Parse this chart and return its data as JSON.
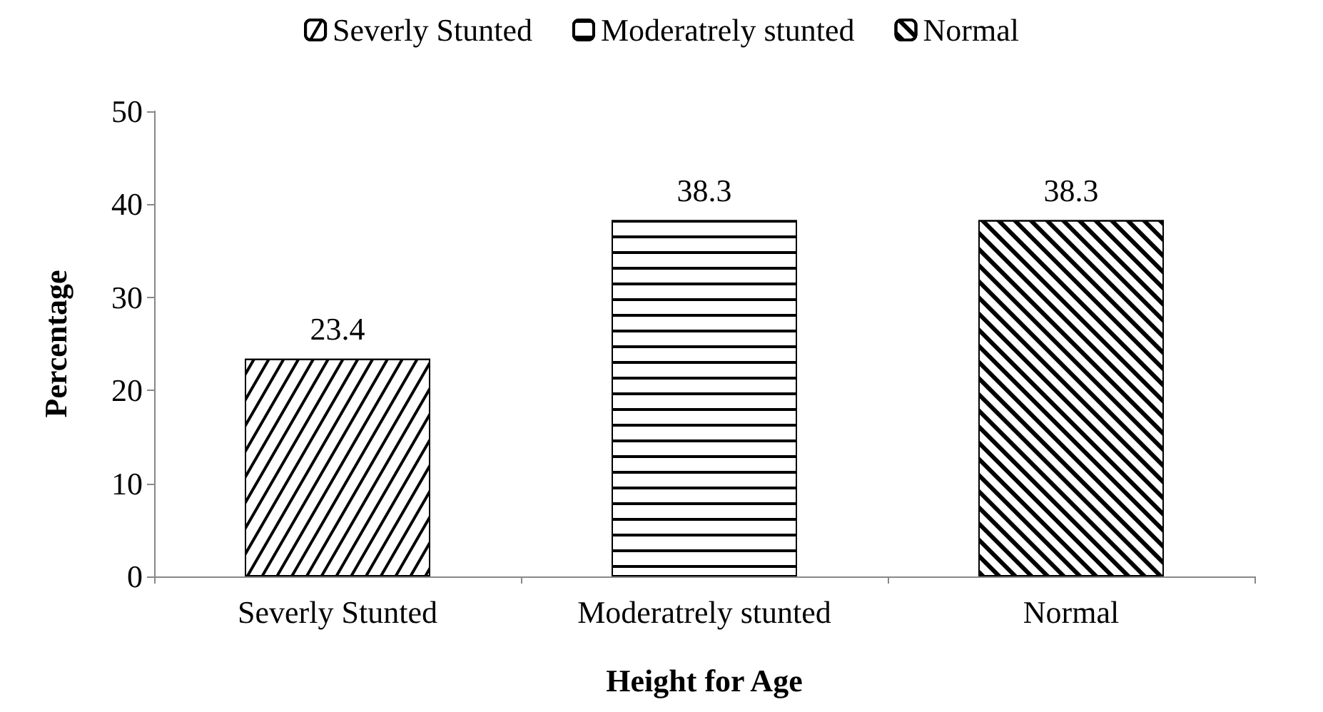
{
  "chart_data": {
    "type": "bar",
    "xlabel": "Height for Age",
    "ylabel": "Percentage",
    "categories": [
      "Severly Stunted",
      "Moderatrely stunted",
      "Normal"
    ],
    "series": [
      {
        "name": "Severly Stunted",
        "color": "#000000",
        "values": [
          23.4,
          null,
          null
        ]
      },
      {
        "name": "Moderatrely stunted",
        "color": "#000000",
        "values": [
          null,
          38.3,
          null
        ]
      },
      {
        "name": "Normal",
        "color": "#000000",
        "values": [
          null,
          null,
          38.3
        ]
      }
    ],
    "ylim": [
      0,
      50
    ],
    "yticks": [
      0,
      10,
      20,
      30,
      40,
      50
    ],
    "grid": false,
    "legend": "top",
    "data_labels": true
  }
}
